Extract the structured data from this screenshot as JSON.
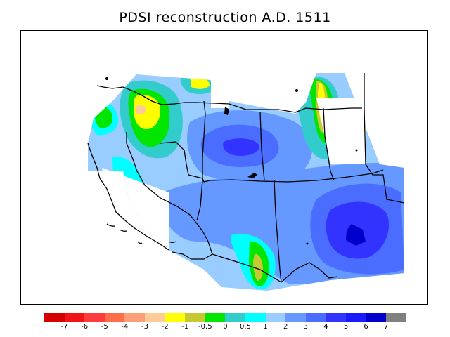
{
  "title": "PDSI reconstruction A.D. 1511",
  "legend": {
    "colors": [
      "#d40000",
      "#f01414",
      "#ff3b3b",
      "#ff6e46",
      "#ff9f7a",
      "#ffcc99",
      "#ffff00",
      "#c8c832",
      "#00e600",
      "#33cccc",
      "#00ffff",
      "#99ccff",
      "#6699ff",
      "#4a6cff",
      "#3333ff",
      "#1a1aff",
      "#0000cc",
      "#808080"
    ],
    "ticks": [
      "-7",
      "-6",
      "-5",
      "-4",
      "-3",
      "-2",
      "-1",
      "-0.5",
      "0",
      "0.5",
      "1",
      "2",
      "3",
      "4",
      "5",
      "6",
      "7"
    ]
  },
  "colors": {
    "light_blue": "#99ccff",
    "mid_blue": "#6699ff",
    "blue": "#4a6cff",
    "deep_blue": "#3333ff",
    "navy": "#0000cc",
    "cyan": "#00ffff",
    "teal": "#33cccc",
    "green": "#00e600",
    "olive": "#c8c832",
    "yellow": "#ffff00",
    "peach": "#ffcc99",
    "pink": "#ff9f7a"
  }
}
